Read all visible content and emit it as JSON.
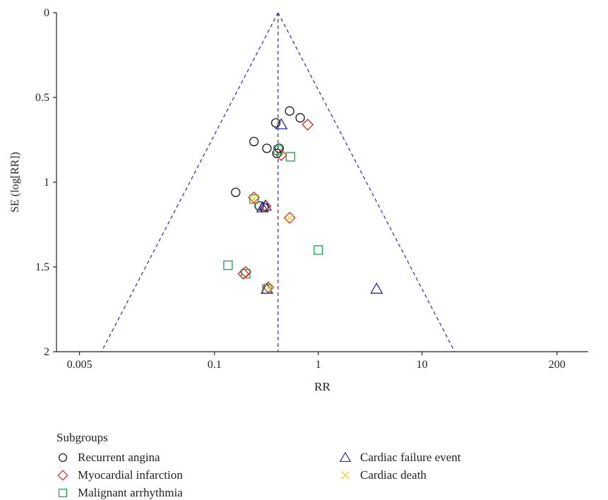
{
  "chart_data": {
    "type": "scatter",
    "subtype": "funnel-plot",
    "xlabel": "RR",
    "ylabel": "SE (log[RR])",
    "xscale": "log",
    "xlim": [
      0.003,
      400
    ],
    "ylim": [
      0,
      2
    ],
    "y_inverted": true,
    "x_ticks": [
      {
        "value": 0.005,
        "label": "0.005"
      },
      {
        "value": 0.1,
        "label": "0.1"
      },
      {
        "value": 1,
        "label": "1"
      },
      {
        "value": 10,
        "label": "10"
      },
      {
        "value": 200,
        "label": "200"
      }
    ],
    "y_ticks": [
      {
        "value": 0,
        "label": "0"
      },
      {
        "value": 0.5,
        "label": "0.5"
      },
      {
        "value": 1,
        "label": "1"
      },
      {
        "value": 1.5,
        "label": "1.5"
      },
      {
        "value": 2,
        "label": "2"
      }
    ],
    "pooled_rr": 0.41,
    "funnel_color": "#2b2b9a",
    "legend": {
      "title": "Subgroups",
      "placement": "bottom"
    },
    "series": [
      {
        "name": "Recurrent angina",
        "marker": "circle",
        "color": "#111111",
        "points": [
          [
            0.53,
            0.58
          ],
          [
            0.67,
            0.62
          ],
          [
            0.39,
            0.65
          ],
          [
            0.24,
            0.76
          ],
          [
            0.32,
            0.8
          ],
          [
            0.42,
            0.8
          ],
          [
            0.4,
            0.83
          ],
          [
            0.16,
            1.06
          ],
          [
            0.27,
            1.14
          ],
          [
            0.3,
            1.15
          ]
        ]
      },
      {
        "name": "Myocardial infarction",
        "marker": "diamond",
        "color": "#e0201b",
        "points": [
          [
            0.79,
            0.66
          ],
          [
            0.44,
            0.84
          ],
          [
            0.24,
            1.09
          ],
          [
            0.31,
            1.14
          ],
          [
            0.53,
            1.21
          ],
          [
            0.19,
            1.54
          ],
          [
            0.2,
            1.53
          ],
          [
            0.33,
            1.62
          ]
        ]
      },
      {
        "name": "Malignant arrhythmia",
        "marker": "square",
        "color": "#19a34a",
        "points": [
          [
            0.41,
            0.81
          ],
          [
            0.54,
            0.85
          ],
          [
            0.24,
            1.1
          ],
          [
            1.0,
            1.4
          ],
          [
            0.135,
            1.49
          ],
          [
            0.2,
            1.54
          ],
          [
            0.32,
            1.63
          ]
        ]
      },
      {
        "name": "Cardiac failure event",
        "marker": "triangle",
        "color": "#2b2b9a",
        "points": [
          [
            0.44,
            0.66
          ],
          [
            0.31,
            1.14
          ],
          [
            0.29,
            1.15
          ],
          [
            3.65,
            1.63
          ],
          [
            0.32,
            1.63
          ]
        ]
      },
      {
        "name": "Cardiac death",
        "marker": "cross",
        "color": "#e3d21a",
        "points": [
          [
            0.53,
            1.21
          ],
          [
            0.24,
            1.1
          ],
          [
            0.33,
            1.62
          ]
        ]
      }
    ]
  }
}
